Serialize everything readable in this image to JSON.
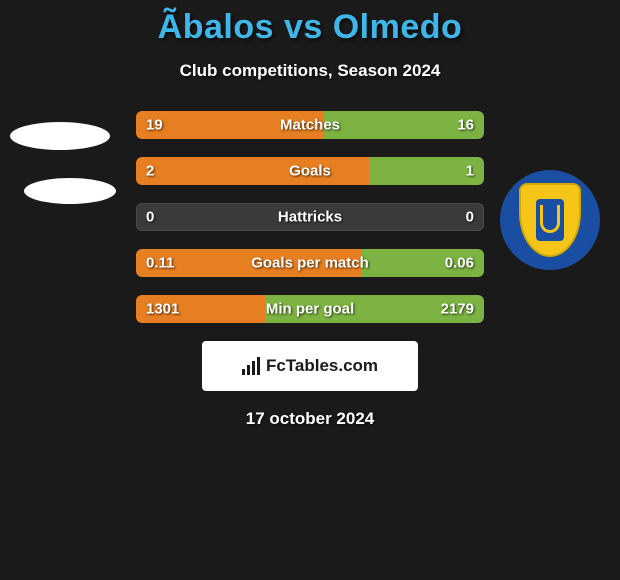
{
  "title": {
    "text": "Ãbalos vs Olmedo",
    "color": "#3fb6e8",
    "fontsize": 34
  },
  "subtitle": {
    "text": "Club competitions, Season 2024",
    "fontsize": 17
  },
  "chart": {
    "bar_bg": "#3a3a3a",
    "left_color": "#e67e22",
    "right_color": "#7cb342",
    "label_fontsize": 15,
    "rows": [
      {
        "label": "Matches",
        "left": "19",
        "right": "16",
        "left_pct": 54,
        "right_pct": 46
      },
      {
        "label": "Goals",
        "left": "2",
        "right": "1",
        "left_pct": 67,
        "right_pct": 33
      },
      {
        "label": "Hattricks",
        "left": "0",
        "right": "0",
        "left_pct": 0,
        "right_pct": 0
      },
      {
        "label": "Goals per match",
        "left": "0.11",
        "right": "0.06",
        "left_pct": 65,
        "right_pct": 35
      },
      {
        "label": "Min per goal",
        "left": "1301",
        "right": "2179",
        "left_pct": 37,
        "right_pct": 63
      }
    ]
  },
  "branding": {
    "text": "FcTables.com"
  },
  "date": {
    "text": "17 october 2024",
    "fontsize": 17
  },
  "crest": {
    "outer_bg": "#1a4ea3",
    "shield_bg": "#f5c518",
    "inner_bg": "#1a4ea3"
  }
}
